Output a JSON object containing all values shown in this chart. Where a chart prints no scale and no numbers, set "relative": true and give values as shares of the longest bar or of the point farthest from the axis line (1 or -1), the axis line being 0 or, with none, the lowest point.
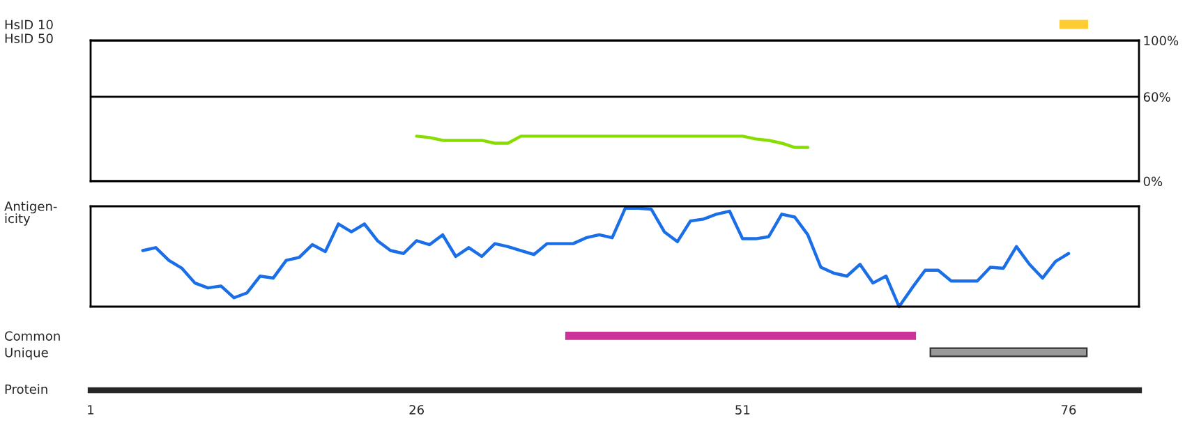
{
  "chart_data": [
    {
      "type": "bar",
      "orientation": "horizontal",
      "categories": [
        "HsID 10"
      ],
      "base": [
        75.3
      ],
      "values": [
        2.2
      ],
      "colors": [
        "#ffcc33"
      ],
      "xlim": [
        1,
        81.4
      ],
      "tick_labels": "y"
    },
    {
      "type": "line",
      "ylabel": "HsID 50",
      "xlim": [
        1,
        81.4
      ],
      "ylim": [
        0,
        100
      ],
      "yticks": [
        {
          "value": 0,
          "label": "0%"
        },
        {
          "value": 60,
          "label": "60%"
        },
        {
          "value": 100,
          "label": "100%"
        }
      ],
      "grid": "y",
      "tick_labels": "y",
      "series": [
        {
          "color": "#88dd00",
          "x": [
            26,
            27,
            28,
            29,
            30,
            31,
            32,
            33,
            34,
            35,
            36,
            37,
            38,
            39,
            40,
            41,
            42,
            43,
            44,
            45,
            46,
            47,
            48,
            49,
            50,
            51,
            52,
            53,
            54,
            55,
            56
          ],
          "values": [
            32,
            31,
            29,
            29,
            29,
            29,
            27,
            27,
            32,
            32,
            32,
            32,
            32,
            32,
            32,
            32,
            32,
            32,
            32,
            32,
            32,
            32,
            32,
            32,
            32,
            32,
            30,
            29,
            27,
            24,
            24
          ]
        }
      ]
    },
    {
      "type": "line",
      "ylabel": "Antigen-\nicity",
      "relative": true,
      "xlim": [
        1,
        81.4
      ],
      "tick_labels": false,
      "series": [
        {
          "color": "#1a6fe8",
          "x": [
            5,
            6,
            7,
            8,
            9,
            10,
            11,
            12,
            13,
            14,
            15,
            16,
            17,
            18,
            19,
            20,
            21,
            22,
            23,
            24,
            25,
            26,
            27,
            28,
            29,
            30,
            31,
            32,
            33,
            34,
            35,
            36,
            37,
            38,
            39,
            40,
            41,
            42,
            43,
            44,
            45,
            46,
            47,
            48,
            49,
            50,
            51,
            52,
            53,
            54,
            55,
            56,
            57,
            58,
            59,
            60,
            61,
            62,
            63,
            64,
            65,
            66,
            67,
            68,
            69,
            70,
            71,
            72,
            73,
            74,
            75,
            76
          ],
          "values": [
            0.57,
            0.6,
            0.47,
            0.39,
            0.24,
            0.19,
            0.21,
            0.09,
            0.14,
            0.31,
            0.29,
            0.47,
            0.5,
            0.63,
            0.56,
            0.84,
            0.76,
            0.84,
            0.67,
            0.57,
            0.54,
            0.67,
            0.63,
            0.73,
            0.51,
            0.6,
            0.51,
            0.64,
            0.61,
            0.57,
            0.53,
            0.64,
            0.64,
            0.64,
            0.7,
            0.73,
            0.7,
            1,
            1,
            0.99,
            0.76,
            0.66,
            0.87,
            0.89,
            0.94,
            0.97,
            0.69,
            0.69,
            0.71,
            0.94,
            0.91,
            0.73,
            0.4,
            0.34,
            0.31,
            0.43,
            0.24,
            0.31,
            0,
            0.19,
            0.37,
            0.37,
            0.26,
            0.26,
            0.26,
            0.4,
            0.39,
            0.61,
            0.43,
            0.29,
            0.46,
            0.54
          ]
        }
      ]
    },
    {
      "type": "bar",
      "orientation": "horizontal",
      "categories": [
        "Common",
        "Unique"
      ],
      "base": [
        37.4,
        65.4
      ],
      "values": [
        26.9,
        12.0
      ],
      "colors": [
        "#cc3399",
        "#999999"
      ],
      "xlabel": "Protein",
      "xlim": [
        1,
        81.4
      ],
      "xticks": [
        1,
        26,
        51,
        76
      ]
    }
  ]
}
